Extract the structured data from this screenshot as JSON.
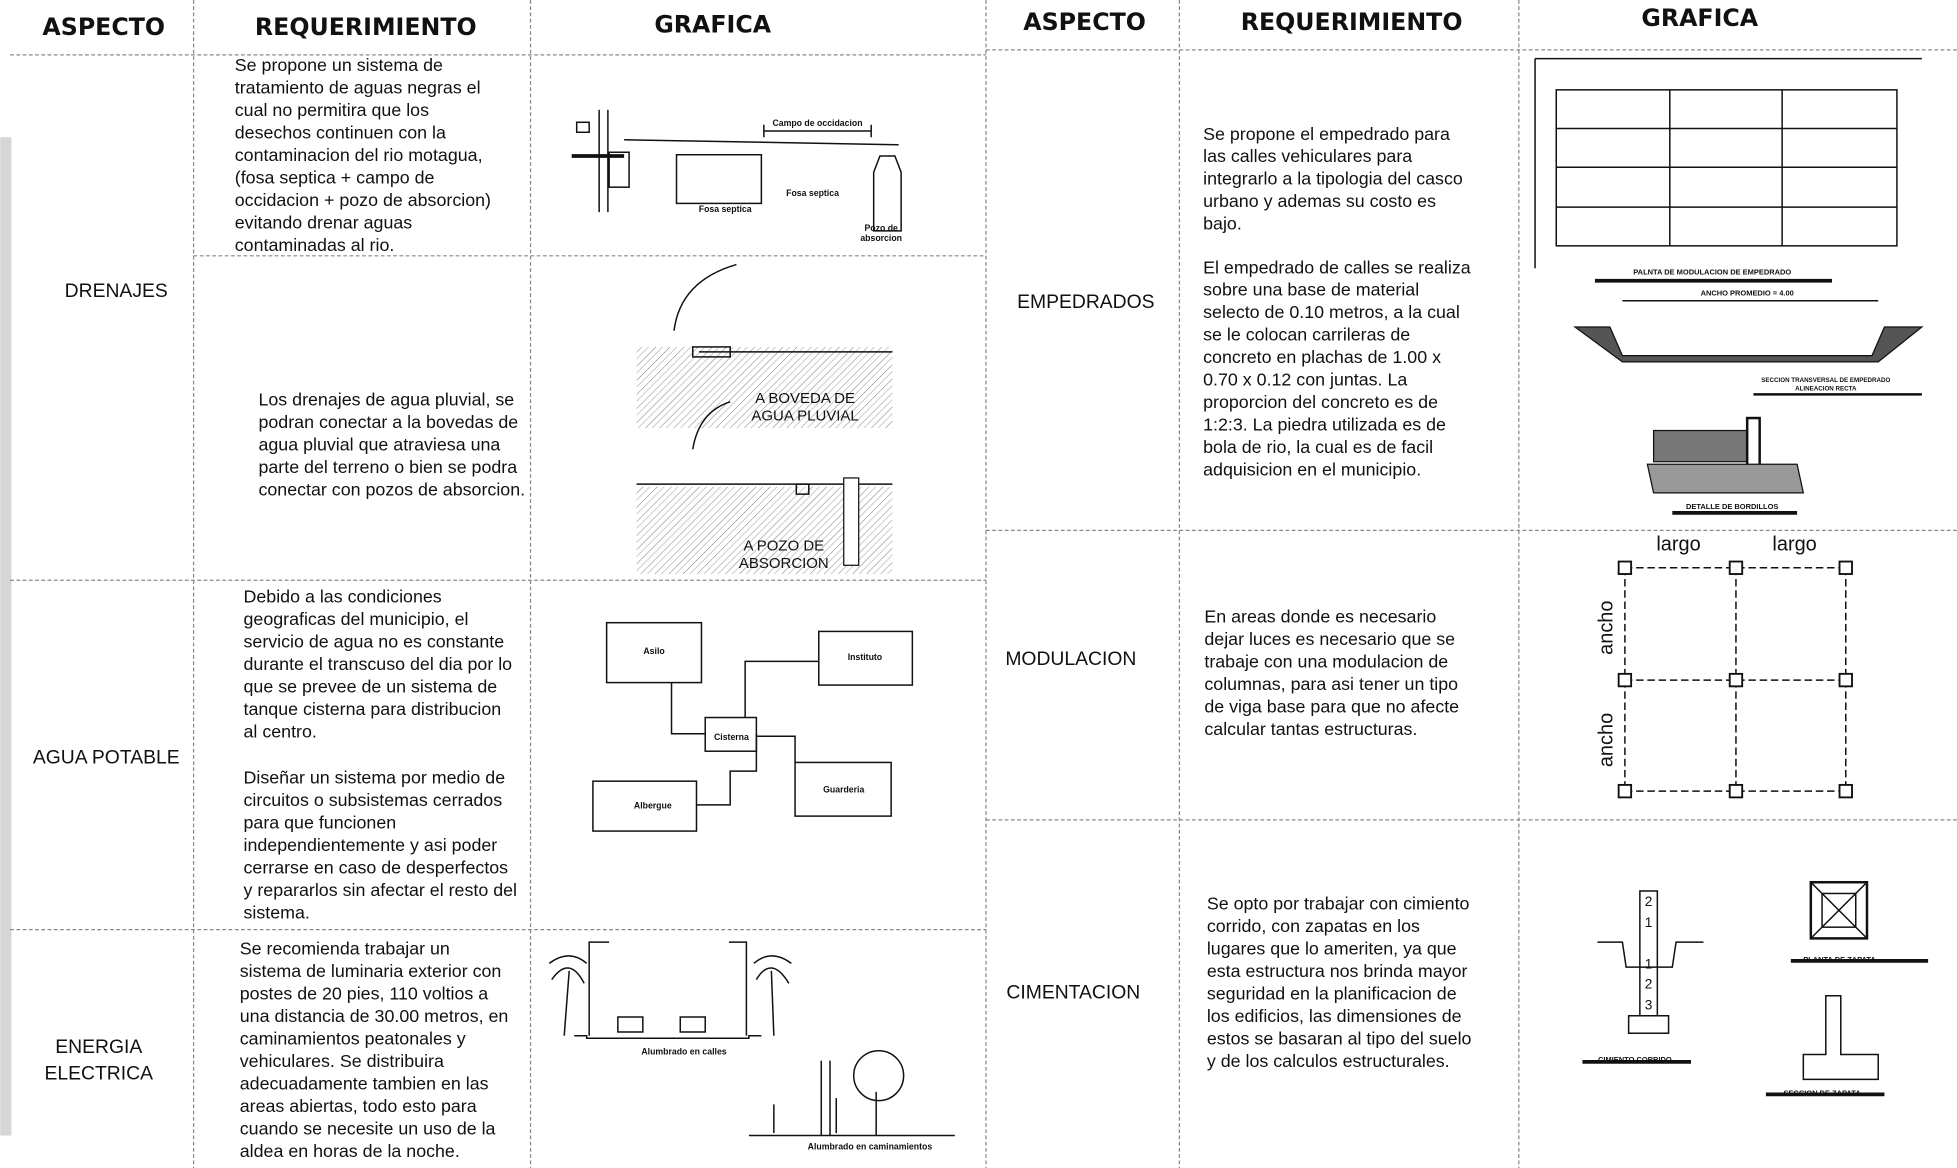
{
  "left_table": {
    "headers": [
      "ASPECTO",
      "REQUERIMIENTO",
      "GRAFICA"
    ],
    "rows": [
      {
        "aspect": [
          "DRENAJES"
        ],
        "requirements": [
          [
            "Se propone un sistema de",
            "tratamiento de aguas negras el",
            "cual no permitira que los",
            "desechos continuen con la",
            "contaminacion del rio motagua,",
            "(fosa septica + campo de",
            "occidacion + pozo de absorcion)",
            "evitando drenar aguas",
            "contaminadas al rio."
          ],
          [
            "Los drenajes de agua pluvial, se",
            "podran conectar a la bovedas de",
            "agua pluvial que atraviesa una",
            "parte del terreno o bien se podra",
            "conectar con pozos de absorcion."
          ]
        ],
        "graphic_labels": [
          "Campo de occidacion",
          "Fosa septica",
          "Fosa septica",
          "Pozo de",
          "absorcion",
          "A BOVEDA DE",
          "AGUA PLUVIAL",
          "A POZO DE",
          "ABSORCION"
        ]
      },
      {
        "aspect": [
          "AGUA POTABLE"
        ],
        "requirements": [
          [
            "Debido a las condiciones",
            "geograficas del municipio, el",
            "servicio de agua no es constante",
            "durante el transcuso del dia por lo",
            "que se prevee de un sistema de",
            "tanque cisterna para distribucion",
            "al centro."
          ],
          [
            "Diseñar un sistema por medio de",
            "circuitos o subsistemas cerrados",
            "para que funcionen",
            "independientemente y asi poder",
            "cerrarse en caso de desperfectos",
            "y repararlos sin afectar el resto del",
            "sistema."
          ]
        ],
        "graphic_labels": [
          "Asilo",
          "Instituto",
          "Cisterna",
          "Albergue",
          "Guarderia"
        ]
      },
      {
        "aspect": [
          "ENERGIA",
          "ELECTRICA"
        ],
        "requirements": [
          [
            "Se recomienda trabajar un",
            "sistema de luminaria exterior con",
            "postes de 20 pies, 110 voltios a",
            "una distancia de 30.00 metros, en",
            "caminamientos peatonales y",
            "vehiculares. Se distribuira",
            "adecuadamente tambien en las",
            "areas abiertas, todo esto para",
            "cuando se necesite un uso de la",
            "aldea en horas de la noche."
          ]
        ],
        "graphic_labels": [
          "Alumbrado en calles",
          "Alumbrado en caminamientos"
        ]
      }
    ]
  },
  "right_table": {
    "headers": [
      "ASPECTO",
      "REQUERIMIENTO",
      "GRAFICA"
    ],
    "rows": [
      {
        "aspect": [
          "EMPEDRADOS"
        ],
        "requirements": [
          [
            "Se propone el empedrado para",
            "las calles vehiculares para",
            "integrarlo a la tipologia del casco",
            "urbano y ademas su costo es",
            "bajo."
          ],
          [
            "El empedrado de calles se realiza",
            "sobre una base de material",
            "selecto de 0.10 metros, a la cual",
            "se le colocan carrileras de",
            "concreto en plachas de 1.00 x",
            "0.70 x 0.12 con juntas. La",
            "proporcion del concreto es de",
            "1:2:3. La piedra utilizada es de",
            "bola de rio, la cual es de facil",
            "adquisicion en el municipio."
          ]
        ],
        "graphic_labels": [
          "PALNTA DE MODULACION DE EMPEDRADO",
          "ANCHO PROMEDIO = 4.00",
          "SECCION TRANSVERSAL DE EMPEDRADO",
          "ALINEACION RECTA",
          "DETALLE DE BORDILLOS"
        ]
      },
      {
        "aspect": [
          "MODULACION"
        ],
        "requirements": [
          [
            "En areas donde es necesario",
            "dejar luces es necesario que se",
            "trabaje con una modulacion de",
            "columnas, para asi tener un tipo",
            "de viga base para que no afecte",
            "calcular tantas estructuras."
          ]
        ],
        "graphic_labels": [
          "largo",
          "largo",
          "ancho",
          "ancho"
        ]
      },
      {
        "aspect": [
          "CIMENTACION"
        ],
        "requirements": [
          [
            "Se opto por trabajar con cimiento",
            "corrido, con zapatas en los",
            "lugares que lo ameriten, ya que",
            "esta estructura nos brinda mayor",
            "seguridad en la planificacion de",
            "los edificios, las dimensiones de",
            "estos se basaran al tipo del suelo",
            "y de los calculos estructurales."
          ]
        ],
        "graphic_labels": [
          "2",
          "1",
          "1",
          "2",
          "3",
          "PLANTA DE ZAPATA",
          "CIMIENTO CORRIDO",
          "SECCION DE ZAPATA"
        ]
      }
    ]
  }
}
